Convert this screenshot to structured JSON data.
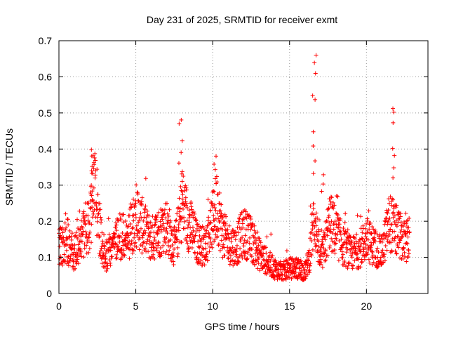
{
  "chart_data": {
    "type": "scatter",
    "title": "Day 231 of 2025, SRMTID for receiver exmt",
    "xlabel": "GPS time / hours",
    "ylabel": "SRMTID / TECUs",
    "xlim": [
      0,
      24
    ],
    "ylim": [
      0,
      0.7
    ],
    "xticks": [
      0,
      5,
      10,
      15,
      20
    ],
    "yticks": [
      0,
      0.1,
      0.2,
      0.3,
      0.4,
      0.5,
      0.6,
      0.7
    ],
    "xtick_labels": [
      "0",
      "5",
      "10",
      "15",
      "20"
    ],
    "ytick_labels": [
      "0",
      "0.1",
      "0.2",
      "0.3",
      "0.4",
      "0.5",
      "0.6",
      "0.7"
    ],
    "grid": true,
    "marker": "+",
    "marker_color": "#ff0000",
    "series": [
      {
        "name": "SRMTID",
        "profile": [
          [
            0.0,
            0.13
          ],
          [
            0.5,
            0.14
          ],
          [
            1.0,
            0.11
          ],
          [
            1.5,
            0.15
          ],
          [
            2.0,
            0.2
          ],
          [
            2.3,
            0.3
          ],
          [
            2.6,
            0.19
          ],
          [
            3.0,
            0.1
          ],
          [
            3.5,
            0.14
          ],
          [
            4.0,
            0.16
          ],
          [
            4.5,
            0.15
          ],
          [
            5.0,
            0.22
          ],
          [
            5.5,
            0.18
          ],
          [
            6.0,
            0.15
          ],
          [
            6.5,
            0.17
          ],
          [
            7.0,
            0.19
          ],
          [
            7.5,
            0.13
          ],
          [
            7.8,
            0.18
          ],
          [
            8.0,
            0.25
          ],
          [
            8.5,
            0.19
          ],
          [
            9.0,
            0.14
          ],
          [
            9.5,
            0.13
          ],
          [
            10.0,
            0.2
          ],
          [
            10.3,
            0.25
          ],
          [
            10.6,
            0.17
          ],
          [
            11.0,
            0.14
          ],
          [
            11.5,
            0.13
          ],
          [
            12.0,
            0.17
          ],
          [
            12.5,
            0.15
          ],
          [
            13.0,
            0.11
          ],
          [
            13.5,
            0.09
          ],
          [
            14.0,
            0.07
          ],
          [
            14.5,
            0.06
          ],
          [
            15.0,
            0.07
          ],
          [
            15.5,
            0.07
          ],
          [
            16.0,
            0.06
          ],
          [
            16.3,
            0.1
          ],
          [
            16.6,
            0.22
          ],
          [
            17.0,
            0.09
          ],
          [
            17.3,
            0.13
          ],
          [
            17.6,
            0.2
          ],
          [
            18.0,
            0.17
          ],
          [
            18.5,
            0.13
          ],
          [
            19.0,
            0.11
          ],
          [
            19.5,
            0.12
          ],
          [
            20.0,
            0.15
          ],
          [
            20.5,
            0.13
          ],
          [
            21.0,
            0.11
          ],
          [
            21.5,
            0.2
          ],
          [
            22.0,
            0.17
          ],
          [
            22.5,
            0.14
          ],
          [
            22.8,
            0.15
          ]
        ],
        "spikes": [
          [
            2.2,
            [
              0.36,
              0.38,
              0.4,
              0.35,
              0.33,
              0.3,
              0.27
            ]
          ],
          [
            7.9,
            [
              0.48,
              0.47,
              0.42,
              0.39,
              0.36,
              0.34,
              0.31
            ]
          ],
          [
            10.2,
            [
              0.38,
              0.36,
              0.34,
              0.31,
              0.28
            ]
          ],
          [
            16.6,
            [
              0.66,
              0.64,
              0.61,
              0.55,
              0.54,
              0.45,
              0.41,
              0.37,
              0.33
            ]
          ],
          [
            17.2,
            [
              0.33,
              0.3,
              0.28
            ]
          ],
          [
            21.7,
            [
              0.51,
              0.5,
              0.47,
              0.4,
              0.38,
              0.35,
              0.32
            ]
          ]
        ]
      }
    ]
  }
}
